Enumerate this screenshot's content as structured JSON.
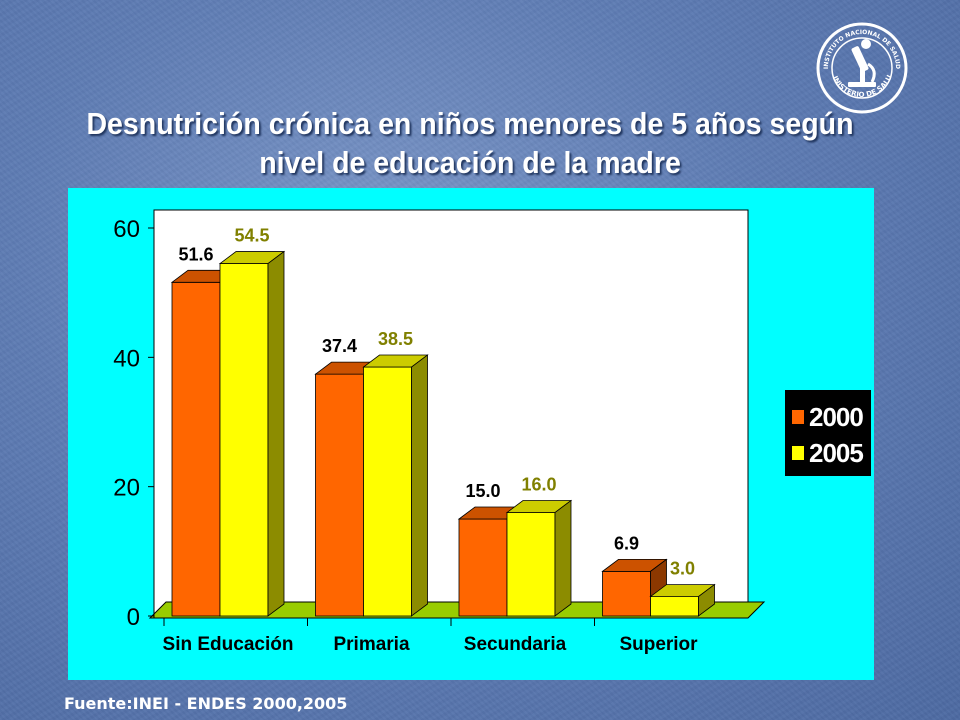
{
  "slide": {
    "title_line1": "Desnutrición crónica en niños menores de 5 años según",
    "title_line2": "nivel de educación de la madre",
    "source": "Fuente:INEI - ENDES 2000,2005",
    "logo_text": "MINISTERIO DE SALUD",
    "logo_text_top": "INSTITUTO NACIONAL DE SALUD"
  },
  "colors": {
    "series_2000": "#ff6600",
    "series_2005": "#ffff00",
    "label_2005": "#808000",
    "floor": "#99cc00",
    "panel": "#00ffff"
  },
  "chart_data": {
    "type": "bar",
    "title": "Desnutrición crónica en niños menores de 5 años según nivel de educación de la madre",
    "xlabel": "",
    "ylabel": "",
    "categories": [
      "Sin Educación",
      "Primaria",
      "Secundaria",
      "Superior"
    ],
    "series": [
      {
        "name": "2000",
        "values": [
          51.6,
          37.4,
          15.0,
          6.9
        ],
        "labels": [
          "51.6",
          "37.4",
          "15.0",
          "6.9"
        ]
      },
      {
        "name": "2005",
        "values": [
          54.5,
          38.5,
          16.0,
          3.0
        ],
        "labels": [
          "54.5",
          "38.5",
          "16.0",
          "3.0"
        ]
      }
    ],
    "ylim": [
      0,
      60
    ],
    "yticks": [
      0,
      20,
      40,
      60
    ],
    "ytick_labels": [
      "0",
      "20",
      "40",
      "60"
    ],
    "legend": [
      "2000",
      "2005"
    ],
    "legend_position": "right",
    "grid": false,
    "style": "3d-bar"
  }
}
